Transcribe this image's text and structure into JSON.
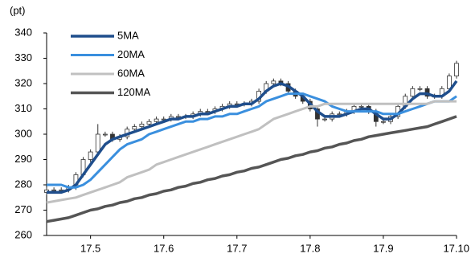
{
  "chart_data": {
    "type": "candlestick",
    "y_label": "(pt)",
    "x": [
      4.4,
      4.5,
      4.6,
      4.7,
      4.8,
      4.9,
      5.0,
      5.1,
      5.2,
      5.3,
      5.4,
      5.5,
      5.6,
      5.7,
      5.8,
      5.9,
      6.0,
      6.1,
      6.2,
      6.3,
      6.4,
      6.5,
      6.6,
      6.7,
      6.8,
      6.9,
      7.0,
      7.1,
      7.2,
      7.3,
      7.4,
      7.5,
      7.6,
      7.7,
      7.8,
      7.9,
      8.0,
      8.1,
      8.2,
      8.3,
      8.4,
      8.5,
      8.6,
      8.7,
      8.8,
      8.9,
      9.0,
      9.1,
      9.2,
      9.3,
      9.4,
      9.5,
      9.6,
      9.7,
      9.8,
      9.9,
      10.0
    ],
    "open": [
      277,
      278,
      278,
      278,
      279,
      284,
      290,
      293,
      300,
      300,
      298,
      299,
      302,
      303,
      304,
      305,
      306,
      306,
      307,
      307,
      307,
      308,
      309,
      309,
      310,
      311,
      312,
      312,
      312,
      313,
      317,
      320,
      321,
      320,
      317,
      315,
      313,
      310,
      306,
      306,
      308,
      308,
      309,
      311,
      311,
      309,
      305,
      305,
      307,
      311,
      315,
      318,
      318,
      315,
      315,
      318,
      323
    ],
    "high": [
      279,
      279,
      279,
      280,
      285,
      291,
      294,
      304,
      301,
      301,
      300,
      303,
      304,
      305,
      306,
      307,
      307,
      308,
      308,
      308,
      309,
      310,
      310,
      311,
      312,
      313,
      313,
      313,
      314,
      318,
      321,
      322,
      322,
      321,
      318,
      316,
      314,
      311,
      307,
      309,
      309,
      310,
      312,
      312,
      312,
      310,
      306,
      308,
      312,
      316,
      319,
      319,
      319,
      316,
      319,
      324,
      329
    ],
    "low": [
      276,
      277,
      277,
      277,
      278,
      283,
      289,
      292,
      299,
      297,
      297,
      298,
      301,
      302,
      303,
      304,
      305,
      305,
      306,
      306,
      306,
      307,
      308,
      308,
      309,
      310,
      311,
      311,
      311,
      312,
      316,
      319,
      319,
      316,
      314,
      312,
      309,
      303,
      305,
      305,
      307,
      307,
      308,
      310,
      308,
      303,
      304,
      304,
      306,
      310,
      314,
      317,
      314,
      314,
      314,
      317,
      322
    ],
    "close": [
      278,
      278,
      278,
      279,
      284,
      290,
      293,
      300,
      300,
      298,
      299,
      302,
      303,
      304,
      305,
      306,
      306,
      307,
      307,
      307,
      308,
      309,
      309,
      310,
      311,
      312,
      312,
      312,
      313,
      317,
      320,
      321,
      320,
      317,
      315,
      313,
      310,
      306,
      306,
      308,
      308,
      309,
      311,
      311,
      309,
      305,
      305,
      307,
      311,
      315,
      318,
      318,
      315,
      315,
      318,
      323,
      328
    ],
    "up_color": "#ffffff",
    "down_color": "#333333",
    "series": [
      {
        "name": "5MA",
        "color": "#1f4e8c",
        "width": 3.5,
        "values": [
          277,
          277,
          277,
          278,
          280,
          284,
          288,
          292,
          296,
          298,
          299,
          300,
          301,
          302,
          303,
          304,
          305,
          306,
          306,
          307,
          307,
          308,
          308,
          309,
          310,
          311,
          311,
          312,
          312,
          314,
          317,
          319,
          320,
          319,
          317,
          315,
          312,
          309,
          307,
          307,
          307,
          308,
          309,
          310,
          310,
          308,
          306,
          306,
          308,
          311,
          314,
          316,
          316,
          315,
          315,
          317,
          321
        ]
      },
      {
        "name": "20MA",
        "color": "#3a8fde",
        "width": 3,
        "values": [
          280,
          280,
          280,
          279,
          279,
          280,
          282,
          285,
          288,
          291,
          294,
          296,
          297,
          298,
          300,
          301,
          302,
          303,
          304,
          305,
          305,
          306,
          306,
          307,
          307,
          308,
          308,
          309,
          310,
          311,
          313,
          314,
          315,
          316,
          316,
          316,
          315,
          314,
          313,
          311,
          310,
          309,
          309,
          309,
          309,
          309,
          308,
          308,
          308,
          309,
          310,
          311,
          312,
          313,
          313,
          313,
          315
        ]
      },
      {
        "name": "60MA",
        "color": "#c0c0c0",
        "width": 3,
        "values": [
          273,
          273.5,
          274,
          274.5,
          275,
          276,
          277,
          278,
          279,
          280,
          281,
          283,
          284,
          285,
          286,
          288,
          289,
          290,
          291,
          292,
          293,
          294,
          295,
          296,
          297,
          298,
          299,
          300,
          301,
          302,
          304,
          306,
          307,
          308,
          309,
          310,
          311,
          311,
          312,
          312,
          312,
          312,
          312,
          312,
          312,
          312,
          312,
          312,
          312,
          312,
          312,
          312,
          312,
          313,
          313,
          313,
          313
        ]
      },
      {
        "name": "120MA",
        "color": "#555555",
        "width": 3.5,
        "values": [
          265.5,
          266,
          266.5,
          267,
          268,
          269,
          270,
          270.5,
          271.5,
          272,
          273,
          273.5,
          274.5,
          275,
          276,
          276.5,
          277.5,
          278,
          279,
          279.5,
          280.5,
          281,
          282,
          282.5,
          283.5,
          284,
          285,
          285.5,
          286.5,
          287,
          288,
          289,
          290,
          290.5,
          291.5,
          292,
          293,
          293.5,
          294.5,
          295,
          296,
          296.5,
          297.5,
          298,
          299,
          299.5,
          300,
          300.5,
          301,
          301.5,
          302,
          302.5,
          303,
          304,
          305,
          306,
          307
        ]
      }
    ],
    "xlim": [
      4.4,
      10
    ],
    "xticks": [
      {
        "value": 5,
        "label": "17.5"
      },
      {
        "value": 6,
        "label": "17.6"
      },
      {
        "value": 7,
        "label": "17.7"
      },
      {
        "value": 8,
        "label": "17.8"
      },
      {
        "value": 9,
        "label": "17.9"
      },
      {
        "value": 10,
        "label": "17.10"
      }
    ],
    "ylim": [
      260,
      340
    ],
    "yticks": [
      260,
      270,
      280,
      290,
      300,
      310,
      320,
      330,
      340
    ],
    "grid": false,
    "legend": "upper left"
  }
}
